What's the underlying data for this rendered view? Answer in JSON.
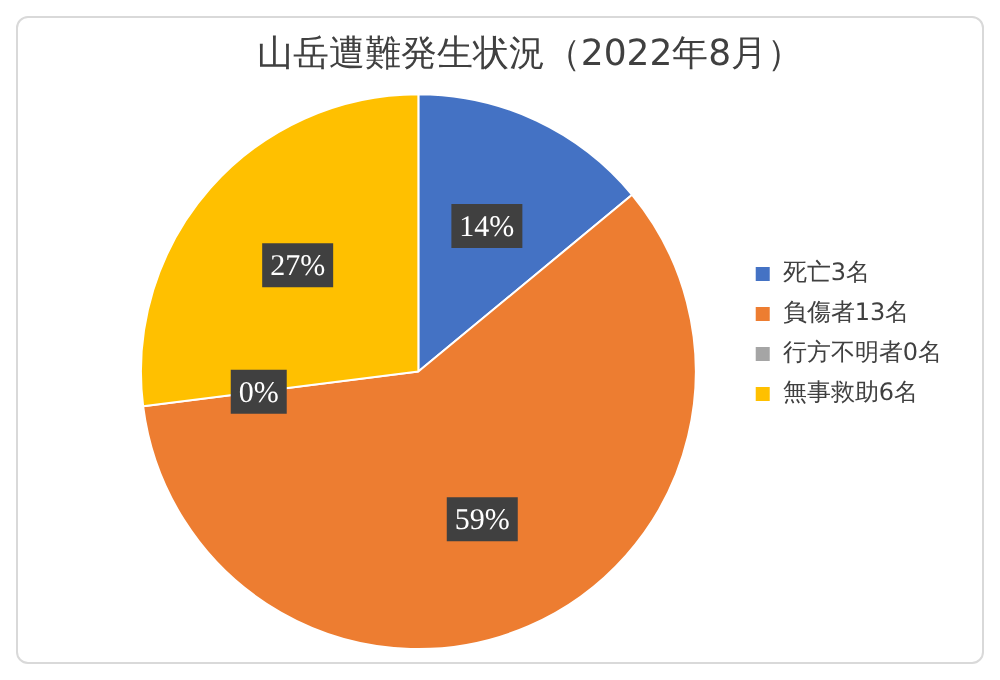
{
  "chart_data": {
    "type": "pie",
    "title": "山岳遭難発生状況（2022年8月）",
    "categories": [
      "死亡3名",
      "負傷者13名",
      "行方不明者0名",
      "無事救助6名"
    ],
    "values": [
      14,
      59,
      0,
      27
    ],
    "colors": [
      "#4472c4",
      "#ed7d31",
      "#a5a5a5",
      "#ffc000"
    ],
    "value_labels": [
      "14%",
      "59%",
      "0%",
      "27%"
    ],
    "legend": "right"
  }
}
